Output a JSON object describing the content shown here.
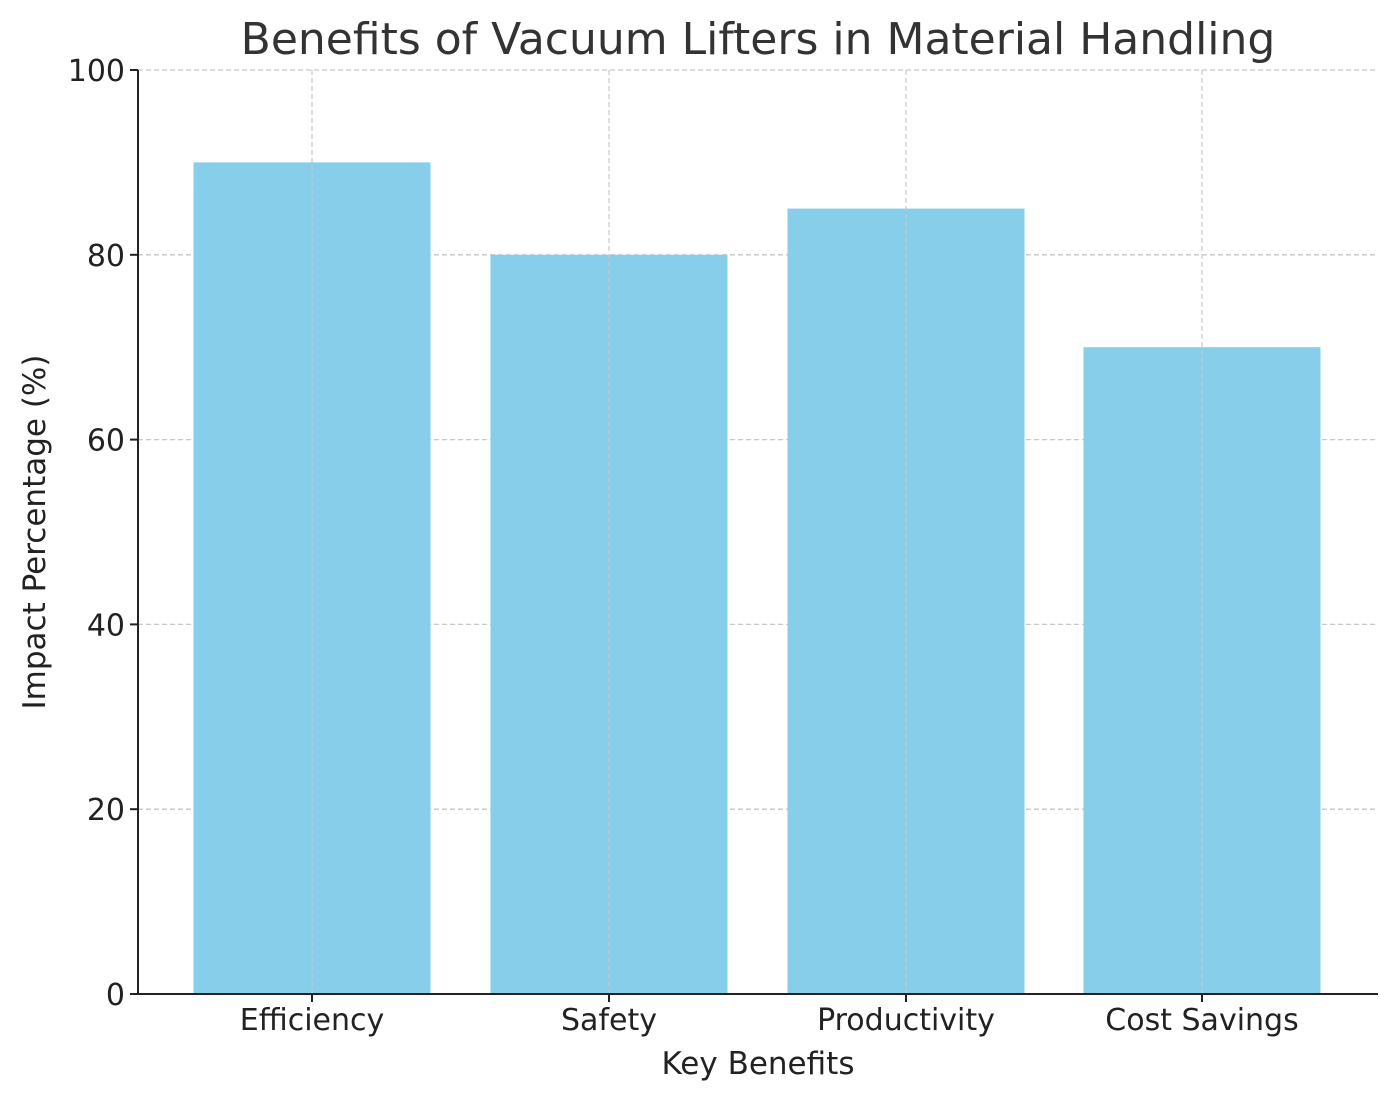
{
  "chart_data": {
    "type": "bar",
    "title": "Benefits of Vacuum Lifters in Material Handling",
    "xlabel": "Key Benefits",
    "ylabel": "Impact Percentage (%)",
    "categories": [
      "Efficiency",
      "Safety",
      "Productivity",
      "Cost Savings"
    ],
    "values": [
      90,
      80,
      85,
      70
    ],
    "ylim": [
      0,
      100
    ],
    "yticks": [
      0,
      20,
      40,
      60,
      80,
      100
    ],
    "grid": true,
    "bar_color": "#87CEEB"
  }
}
